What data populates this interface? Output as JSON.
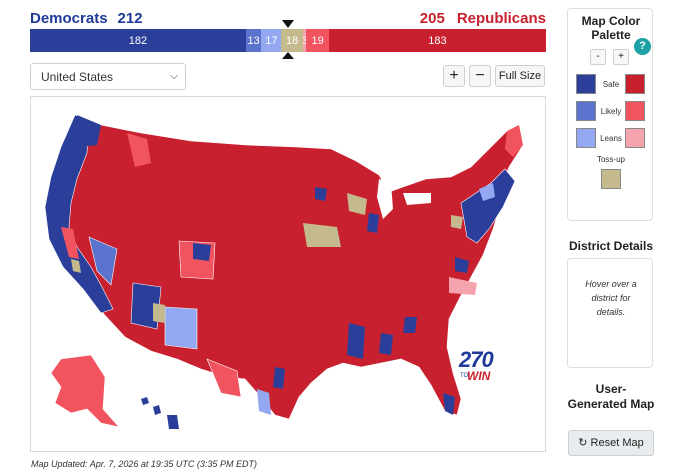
{
  "header": {
    "dem_label": "Democrats",
    "dem_total": "212",
    "rep_total": "205",
    "rep_label": "Republicans"
  },
  "bar_segments": [
    {
      "label": "182",
      "seats": 182,
      "color": "#2b3f9a"
    },
    {
      "label": "13",
      "seats": 13,
      "color": "#5a73cc"
    },
    {
      "label": "17",
      "seats": 17,
      "color": "#93a8f0"
    },
    {
      "label": "18",
      "seats": 18,
      "color": "#c5b98e"
    },
    {
      "label": "3",
      "seats": 3,
      "color": "#f5a3ad"
    },
    {
      "label": "19",
      "seats": 19,
      "color": "#f2545f"
    },
    {
      "label": "183",
      "seats": 183,
      "color": "#c8202e"
    }
  ],
  "controls": {
    "region_select": "United States",
    "zoom_in": "+",
    "zoom_out": "−",
    "full_size": "Full Size"
  },
  "footer": {
    "updated": "Map Updated: Apr. 7, 2026 at 19:35 UTC (3:35 PM EDT)"
  },
  "palette": {
    "title": "Map Color Palette",
    "minus": "-",
    "plus": "+",
    "help": "?",
    "safe": "Safe",
    "likely": "Likely",
    "leans": "Leans",
    "tossup": "Toss-up",
    "colors": {
      "dem_safe": "#2b3f9a",
      "dem_likely": "#5a73cc",
      "dem_leans": "#93a8f0",
      "rep_safe": "#c8202e",
      "rep_likely": "#f2545f",
      "rep_leans": "#f5a3ad",
      "tossup": "#c5b98e"
    }
  },
  "details": {
    "title": "District Details",
    "hint": "Hover over a district for details."
  },
  "user_map": {
    "title": "User-Generated Map",
    "reset": "Reset Map"
  },
  "logo": {
    "number": "270",
    "to": "TO",
    "win": "WIN"
  }
}
